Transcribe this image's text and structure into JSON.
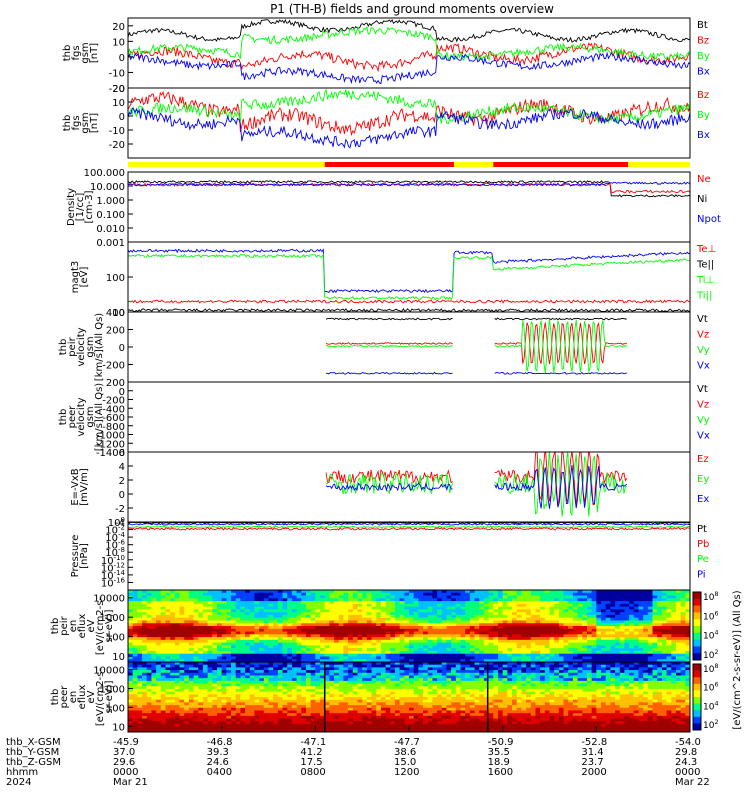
{
  "title": "P1 (TH-B) fields and ground moments overview",
  "colors": {
    "black": "#000000",
    "red": "#ff0000",
    "green": "#00ff00",
    "blue": "#0000ff",
    "yellow": "#ffff00"
  },
  "x_axis": {
    "hhmm_ticks": [
      "0000",
      "0400",
      "0800",
      "1200",
      "1600",
      "2000",
      "0000"
    ],
    "rows": [
      {
        "label": "thb_X-GSM",
        "values": [
          "-45.9",
          "-46.8",
          "-47.1",
          "-47.7",
          "-50.9",
          "-52.8",
          "-54.0"
        ]
      },
      {
        "label": "thb_Y-GSM",
        "values": [
          "37.0",
          "39.3",
          "41.2",
          "38.6",
          "35.5",
          "31.4",
          "29.8"
        ]
      },
      {
        "label": "thb_Z-GSM",
        "values": [
          "29.6",
          "24.6",
          "17.5",
          "15.0",
          "18.9",
          "23.7",
          "24.3"
        ]
      },
      {
        "label": "hhmm",
        "values": [
          "0000",
          "0400",
          "0800",
          "1200",
          "1600",
          "2000",
          "0000"
        ]
      }
    ],
    "year": "2024",
    "date_start": "Mar 21",
    "date_end": "Mar 22"
  },
  "mode_bar": [
    {
      "from": 0,
      "to": 0.35,
      "color": "yellow"
    },
    {
      "from": 0.35,
      "to": 0.58,
      "color": "red"
    },
    {
      "from": 0.58,
      "to": 0.65,
      "color": "yellow"
    },
    {
      "from": 0.65,
      "to": 0.89,
      "color": "red"
    },
    {
      "from": 0.89,
      "to": 1,
      "color": "yellow"
    }
  ],
  "colorbar": {
    "label": "[eV/(cm^2-s-sr-eV)] (All Qs)",
    "upper_ticks": [
      "10^8",
      "10^6",
      "10^4",
      "10^2"
    ],
    "lower_ticks": [
      "10^8",
      "10^6",
      "10^4",
      "10^2"
    ]
  },
  "chart_data": [
    {
      "type": "line",
      "ylabel": [
        "thb",
        "fgs",
        "gsm",
        "[nT]"
      ],
      "ylim": [
        -20,
        25
      ],
      "ticks": [
        "20",
        "10",
        "0",
        "-10",
        "-20"
      ],
      "legend": [
        {
          "name": "Bt",
          "color": "black"
        },
        {
          "name": "Bz",
          "color": "red"
        },
        {
          "name": "By",
          "color": "green"
        },
        {
          "name": "Bx",
          "color": "blue"
        }
      ]
    },
    {
      "type": "line",
      "ylabel": [
        "thb",
        "fgs",
        "gsm",
        "[nT]"
      ],
      "ylim": [
        -30,
        20
      ],
      "ticks": [
        "20",
        "10",
        "0",
        "-10",
        "-20"
      ],
      "legend": [
        {
          "name": "Bz",
          "color": "red"
        },
        {
          "name": "By",
          "color": "green"
        },
        {
          "name": "Bx",
          "color": "blue"
        }
      ]
    },
    {
      "type": "line",
      "ylabel": [
        "Density",
        "[1/cc]",
        "[cm-3]"
      ],
      "log": true,
      "ylim": [
        0.001,
        100
      ],
      "ticks": [
        "100.000",
        "10.000",
        "1.000",
        "0.100",
        "0.010",
        "0.001"
      ],
      "legend": [
        {
          "name": "Ne",
          "color": "red"
        },
        {
          "name": "Ni",
          "color": "black"
        },
        {
          "name": "Npot",
          "color": "blue"
        }
      ]
    },
    {
      "type": "line",
      "ylabel": [
        "magt3",
        "[eV]"
      ],
      "log": true,
      "ylim": [
        10,
        1000
      ],
      "ticks": [
        "100",
        "10"
      ],
      "legend": [
        {
          "name": "Te⊥",
          "color": "red"
        },
        {
          "name": "Te||",
          "color": "black"
        },
        {
          "name": "Ti⊥",
          "color": "green"
        },
        {
          "name": "Ti||",
          "color": "green"
        }
      ]
    },
    {
      "type": "line",
      "ylabel": [
        "thb",
        "peir",
        "velocity",
        "gsm",
        "[km/s](All Qs)"
      ],
      "ylim": [
        -400,
        400
      ],
      "ticks": [
        "400",
        "200",
        "0",
        "-200"
      ],
      "legend": [
        {
          "name": "Vt",
          "color": "black"
        },
        {
          "name": "Vz",
          "color": "red"
        },
        {
          "name": "Vy",
          "color": "green"
        },
        {
          "name": "Vx",
          "color": "blue"
        }
      ]
    },
    {
      "type": "line",
      "ylabel": [
        "thb",
        "peer",
        "velocity",
        "gsm",
        "[km/s](All Qs)"
      ],
      "ylim": [
        -1400,
        200
      ],
      "ticks": [
        "200",
        "0",
        "-200",
        "-400",
        "-600",
        "-800",
        "-1000",
        "-1200",
        "-1400"
      ],
      "legend": [
        {
          "name": "Vt",
          "color": "black"
        },
        {
          "name": "Vz",
          "color": "red"
        },
        {
          "name": "Vy",
          "color": "green"
        },
        {
          "name": "Vx",
          "color": "blue"
        }
      ]
    },
    {
      "type": "line",
      "ylabel": [
        "E=-VxB",
        "[mV/m]"
      ],
      "ylim": [
        -4,
        6
      ],
      "ticks": [
        "6",
        "4",
        "2",
        "0",
        "-2",
        "-4"
      ],
      "legend": [
        {
          "name": "Ez",
          "color": "red"
        },
        {
          "name": "Ey",
          "color": "green"
        },
        {
          "name": "Ex",
          "color": "blue"
        }
      ]
    },
    {
      "type": "line",
      "ylabel": [
        "Pressure",
        "[nPa]"
      ],
      "log": true,
      "ylim": [
        1e-18,
        1
      ],
      "ticks": [
        "10^0",
        "10^-2",
        "10^-4",
        "10^-6",
        "10^-8",
        "10^-10",
        "10^-12",
        "10^-14",
        "10^-16"
      ],
      "legend": [
        {
          "name": "Pt",
          "color": "black"
        },
        {
          "name": "Pb",
          "color": "red"
        },
        {
          "name": "Pe",
          "color": "green"
        },
        {
          "name": "Pi",
          "color": "blue"
        }
      ]
    },
    {
      "type": "heatmap",
      "ylabel": [
        "thb",
        "peir",
        "en",
        "eflux",
        "eV",
        "[eV/(cm2-s-",
        "sr-eV)]"
      ],
      "log": true,
      "ylim": [
        5,
        25000
      ],
      "ticks": [
        "10000",
        "1000",
        "100",
        "10"
      ]
    },
    {
      "type": "heatmap",
      "ylabel": [
        "thb",
        "peer",
        "en",
        "eflux",
        "eV",
        "[eV/(cm2-s-",
        "sr-eV)]"
      ],
      "log": true,
      "ylim": [
        5,
        25000
      ],
      "ticks": [
        "10000",
        "1000",
        "100",
        "10"
      ]
    }
  ]
}
